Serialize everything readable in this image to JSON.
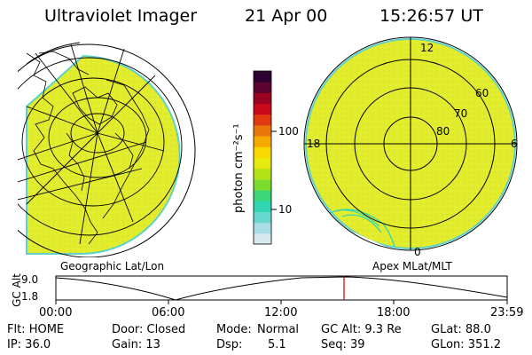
{
  "header": {
    "instrument": "Ultraviolet Imager",
    "date": "21 Apr 00",
    "time": "15:26:57 UT"
  },
  "left_panel": {
    "caption": "Geographic Lat/Lon"
  },
  "right_panel": {
    "caption": "Apex MLat/MLT",
    "mlt_labels": [
      "12",
      "18",
      "6",
      "0"
    ],
    "lat_labels": [
      "60",
      "70",
      "80"
    ]
  },
  "colorbar": {
    "unit_label": "photon cm⁻²s⁻¹",
    "ticks": [
      "100",
      "10"
    ],
    "scale": "log",
    "colors": [
      "#d8e8ef",
      "#a9dde6",
      "#66d8d0",
      "#33d6b3",
      "#3bd67a",
      "#7cdc2e",
      "#b3e41a",
      "#e6ea0e",
      "#f7d800",
      "#f5a800",
      "#e8780a",
      "#e03a10",
      "#c80a1a",
      "#990520",
      "#5e0330",
      "#2b0230"
    ]
  },
  "altitude_plot": {
    "ylabel": "GC Alt",
    "y_ticks": [
      "9.0",
      "1.8"
    ],
    "x_ticks": [
      "00:00",
      "06:00",
      "12:00",
      "18:00",
      "23:59"
    ],
    "current_time_marker_color": "#cc0000"
  },
  "status": {
    "row1": {
      "flt": "Flt: HOME",
      "door": "Door: Closed",
      "mode_label": "Mode:",
      "mode_value": "Normal",
      "gc_alt": "GC Alt: 9.3 Re",
      "glat": "GLat:  88.0"
    },
    "row2": {
      "ip": "IP: 36.0",
      "gain": "Gain: 13",
      "dsp_label": "Dsp:",
      "dsp_value": "5.1",
      "seq": "Seq: 39",
      "glon": "GLon: 351.2"
    }
  },
  "colors": {
    "image_fill": "#e3ec2a",
    "limb": "#5fd2c8",
    "marker": "#cc0000"
  }
}
